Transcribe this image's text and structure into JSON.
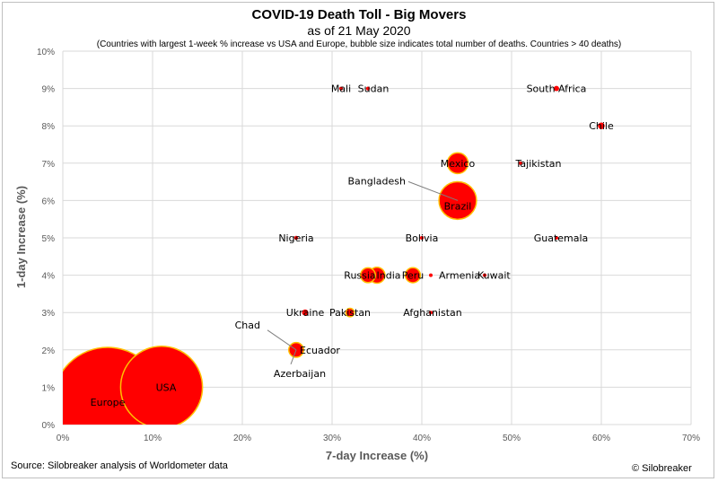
{
  "chart_data": {
    "type": "scatter",
    "title": "COVID-19 Death Toll - Big Movers",
    "subtitle": "as of 21 May 2020",
    "note": "(Countries with largest 1-week % increase vs USA and Europe, bubble size indicates total number of deaths. Countries > 40 deaths)",
    "xlabel": "7-day Increase (%)",
    "ylabel": "1-day Increase (%)",
    "xlim": [
      0,
      70
    ],
    "ylim": [
      0,
      10
    ],
    "x_ticks": [
      "0%",
      "10%",
      "20%",
      "30%",
      "40%",
      "50%",
      "60%",
      "70%"
    ],
    "y_ticks": [
      "0%",
      "1%",
      "2%",
      "3%",
      "4%",
      "5%",
      "6%",
      "7%",
      "8%",
      "9%",
      "10%"
    ],
    "grid": true,
    "bubble_color": "#ff0000",
    "bubble_edge": "#ffc000",
    "points": [
      {
        "name": "Europe",
        "x": 5,
        "y": 0.6,
        "size": 170000
      },
      {
        "name": "USA",
        "x": 11,
        "y": 1.0,
        "size": 95000
      },
      {
        "name": "Chad",
        "x": 26,
        "y": 2.0,
        "size": 60
      },
      {
        "name": "Azerbaijan",
        "x": 26,
        "y": 2.0,
        "size": 40
      },
      {
        "name": "Ecuador",
        "x": 26,
        "y": 2.0,
        "size": 3100
      },
      {
        "name": "Ukraine",
        "x": 27,
        "y": 3.0,
        "size": 560
      },
      {
        "name": "Pakistan",
        "x": 32,
        "y": 3.0,
        "size": 1000
      },
      {
        "name": "Afghanistan",
        "x": 41,
        "y": 3.0,
        "size": 150
      },
      {
        "name": "Russia",
        "x": 34,
        "y": 4.0,
        "size": 3100
      },
      {
        "name": "India",
        "x": 35,
        "y": 4.0,
        "size": 3600
      },
      {
        "name": "Peru",
        "x": 39,
        "y": 4.0,
        "size": 3200
      },
      {
        "name": "Armenia",
        "x": 41,
        "y": 4.0,
        "size": 90
      },
      {
        "name": "Kuwait",
        "x": 47,
        "y": 4.0,
        "size": 130
      },
      {
        "name": "Nigeria",
        "x": 26,
        "y": 5.0,
        "size": 220
      },
      {
        "name": "Bolivia",
        "x": 40,
        "y": 5.0,
        "size": 190
      },
      {
        "name": "Guatemala",
        "x": 55,
        "y": 5.0,
        "size": 70
      },
      {
        "name": "Bangladesh",
        "x": 44,
        "y": 6.0,
        "size": 380
      },
      {
        "name": "Brazil",
        "x": 44,
        "y": 6.0,
        "size": 20000
      },
      {
        "name": "Mexico",
        "x": 44,
        "y": 7.0,
        "size": 6100
      },
      {
        "name": "Tajikistan",
        "x": 51,
        "y": 7.0,
        "size": 46
      },
      {
        "name": "Chile",
        "x": 60,
        "y": 8.0,
        "size": 630
      },
      {
        "name": "Mali",
        "x": 31,
        "y": 9.0,
        "size": 60
      },
      {
        "name": "Sudan",
        "x": 34,
        "y": 9.0,
        "size": 200
      },
      {
        "name": "South Africa",
        "x": 55,
        "y": 9.0,
        "size": 400
      }
    ]
  },
  "footer": {
    "source": "Source: Silobreaker analysis of Worldometer data",
    "copyright": "© Silobreaker"
  }
}
